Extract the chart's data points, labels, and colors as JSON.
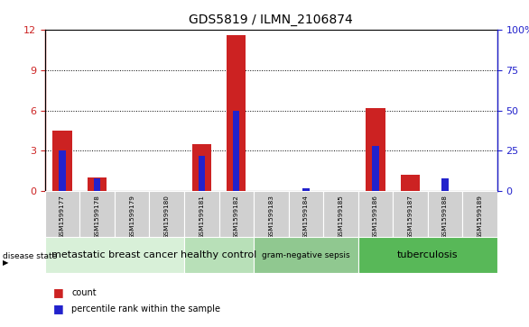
{
  "title": "GDS5819 / ILMN_2106874",
  "samples": [
    "GSM1599177",
    "GSM1599178",
    "GSM1599179",
    "GSM1599180",
    "GSM1599181",
    "GSM1599182",
    "GSM1599183",
    "GSM1599184",
    "GSM1599185",
    "GSM1599186",
    "GSM1599187",
    "GSM1599188",
    "GSM1599189"
  ],
  "count_values": [
    4.5,
    1.0,
    0.0,
    0.0,
    3.5,
    11.6,
    0.0,
    0.0,
    0.0,
    6.2,
    1.2,
    0.0,
    0.0
  ],
  "percentile_values": [
    25.0,
    8.0,
    0.0,
    0.0,
    22.0,
    50.0,
    0.0,
    2.0,
    0.0,
    28.0,
    0.0,
    8.0,
    0.0
  ],
  "count_color": "#cc2222",
  "percentile_color": "#2222cc",
  "ylim_left": [
    0,
    12
  ],
  "ylim_right": [
    0,
    100
  ],
  "yticks_left": [
    0,
    3,
    6,
    9,
    12
  ],
  "yticks_right": [
    0,
    25,
    50,
    75,
    100
  ],
  "ytick_labels_right": [
    "0",
    "25",
    "50",
    "75",
    "100%"
  ],
  "disease_groups": [
    {
      "label": "metastatic breast cancer",
      "start": 0,
      "end": 4,
      "color": "#d8f0d8"
    },
    {
      "label": "healthy control",
      "start": 4,
      "end": 6,
      "color": "#b8e0b8"
    },
    {
      "label": "gram-negative sepsis",
      "start": 6,
      "end": 9,
      "color": "#90c890"
    },
    {
      "label": "tuberculosis",
      "start": 9,
      "end": 13,
      "color": "#58b858"
    }
  ],
  "disease_label": "disease state",
  "legend_count": "count",
  "legend_percentile": "percentile rank within the sample",
  "background_color": "#ffffff",
  "tick_label_bg": "#d0d0d0",
  "bar_width": 0.55
}
